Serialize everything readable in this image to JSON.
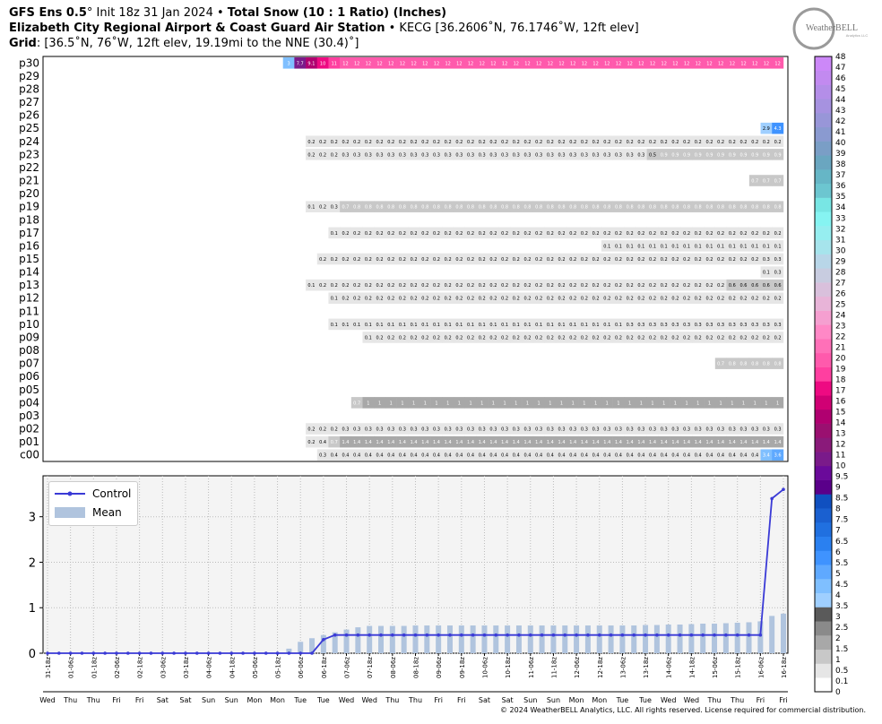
{
  "header": {
    "line1_model": "GFS Ens 0.5",
    "line1_deg": "°",
    "line1_init": " Init 18z 31 Jan 2024 • ",
    "line1_title": "Total Snow (10 : 1 Ratio) (Inches)",
    "line2_place": "Elizabeth City Regional Airport & Coast Guard Air Station",
    "line2_rest": " • KECG [36.2606˚N, 76.1746˚W, 12ft elev]",
    "line3_label": "Grid",
    "line3_rest": ": [36.5˚N, 76˚W, 12ft elev, 19.19mi to the NNE (30.4)˚]"
  },
  "logo": {
    "text": "WeatherBELL",
    "sub": "Analytics LLC"
  },
  "copyright": "© 2024 WeatherBELL Analytics, LLC. All rights reserved. License required for commercial distribution.",
  "colors": {
    "control_line": "#3a3ad6",
    "mean_bar": "#b0c4de",
    "chart_bg": "#f4f4f4"
  },
  "legend": {
    "control": "Control",
    "mean": "Mean"
  },
  "chart_data": [
    {
      "type": "heatmap",
      "title": "Total Snow (10 : 1 Ratio) (Inches)",
      "members": [
        "p30",
        "p29",
        "p28",
        "p27",
        "p26",
        "p25",
        "p24",
        "p23",
        "p22",
        "p21",
        "p20",
        "p19",
        "p18",
        "p17",
        "p16",
        "p15",
        "p14",
        "p13",
        "p12",
        "p11",
        "p10",
        "p09",
        "p08",
        "p07",
        "p06",
        "p05",
        "p04",
        "p03",
        "p02",
        "p01",
        "c00"
      ],
      "n_steps": 65,
      "runs": {
        "p30": [
          [
            21,
            [
              3,
              7.7,
              9.1,
              10,
              11
            ]
          ],
          [
            26,
            [
              12,
              12,
              12,
              12,
              12,
              12,
              12,
              12,
              12,
              12,
              12,
              12,
              12,
              12,
              12,
              12,
              12,
              12,
              12,
              12,
              12,
              12,
              12,
              12,
              12,
              12,
              12,
              12,
              12,
              12,
              12,
              12,
              12,
              12,
              12,
              12,
              12,
              12,
              12
            ]
          ]
        ],
        "p25": [
          [
            63,
            [
              2.9,
              4.3
            ]
          ]
        ],
        "p24": [
          [
            23,
            [
              0.2,
              0.2,
              0.2,
              0.2,
              0.2,
              0.2,
              0.2,
              0.2,
              0.2,
              0.2,
              0.2,
              0.2,
              0.2,
              0.2,
              0.2,
              0.2,
              0.2,
              0.2,
              0.2,
              0.2,
              0.2,
              0.2,
              0.2,
              0.2,
              0.2,
              0.2,
              0.2,
              0.2,
              0.2,
              0.2,
              0.2,
              0.2,
              0.2,
              0.2,
              0.2,
              0.2,
              0.2,
              0.2,
              0.2,
              0.2,
              0.2,
              0.2
            ]
          ]
        ],
        "p23": [
          [
            23,
            [
              0.2,
              0.2,
              0.2,
              0.3,
              0.3,
              0.3,
              0.3,
              0.3,
              0.3,
              0.3,
              0.3,
              0.3,
              0.3,
              0.3,
              0.3,
              0.3,
              0.3,
              0.3,
              0.3,
              0.3,
              0.3,
              0.3,
              0.3,
              0.3,
              0.3,
              0.3,
              0.3,
              0.3,
              0.3,
              0.3,
              0.5,
              0.9,
              0.9,
              0.9,
              0.9,
              0.9,
              0.9,
              0.9,
              0.9,
              0.9,
              0.9,
              0.9
            ]
          ]
        ],
        "p21": [
          [
            62,
            [
              0.7,
              0.7,
              0.7
            ]
          ]
        ],
        "p19": [
          [
            23,
            [
              0.1,
              0.2,
              0.3,
              0.7,
              0.8,
              0.8,
              0.8,
              0.8,
              0.8,
              0.8,
              0.8,
              0.8,
              0.8,
              0.8,
              0.8,
              0.8,
              0.8,
              0.8,
              0.8,
              0.8,
              0.8,
              0.8,
              0.8,
              0.8,
              0.8,
              0.8,
              0.8,
              0.8,
              0.8,
              0.8,
              0.8,
              0.8,
              0.8,
              0.8,
              0.8,
              0.8,
              0.8,
              0.8,
              0.8,
              0.8,
              0.8,
              0.8
            ]
          ]
        ],
        "p17": [
          [
            25,
            [
              0.1,
              0.2,
              0.2,
              0.2,
              0.2,
              0.2,
              0.2,
              0.2,
              0.2,
              0.2,
              0.2,
              0.2,
              0.2,
              0.2,
              0.2,
              0.2,
              0.2,
              0.2,
              0.2,
              0.2,
              0.2,
              0.2,
              0.2,
              0.2,
              0.2,
              0.2,
              0.2,
              0.2,
              0.2,
              0.2,
              0.2,
              0.2,
              0.2,
              0.2,
              0.2,
              0.2,
              0.2,
              0.2,
              0.2,
              0.2
            ]
          ]
        ],
        "p16": [
          [
            49,
            [
              0.1,
              0.1,
              0.1,
              0.1,
              0.1,
              0.1,
              0.1,
              0.1,
              0.1,
              0.1,
              0.1,
              0.1,
              0.1,
              0.1,
              0.1,
              0.1
            ]
          ]
        ],
        "p15": [
          [
            24,
            [
              0.2,
              0.2,
              0.2,
              0.2,
              0.2,
              0.2,
              0.2,
              0.2,
              0.2,
              0.2,
              0.2,
              0.2,
              0.2,
              0.2,
              0.2,
              0.2,
              0.2,
              0.2,
              0.2,
              0.2,
              0.2,
              0.2,
              0.2,
              0.2,
              0.2,
              0.2,
              0.2,
              0.2,
              0.2,
              0.2,
              0.2,
              0.2,
              0.2,
              0.2,
              0.2,
              0.2,
              0.2,
              0.2,
              0.2,
              0.3,
              0.3
            ]
          ]
        ],
        "p14": [
          [
            63,
            [
              0.1,
              0.3
            ]
          ]
        ],
        "p13": [
          [
            23,
            [
              0.1,
              0.2,
              0.2,
              0.2,
              0.2,
              0.2,
              0.2,
              0.2,
              0.2,
              0.2,
              0.2,
              0.2,
              0.2,
              0.2,
              0.2,
              0.2,
              0.2,
              0.2,
              0.2,
              0.2,
              0.2,
              0.2,
              0.2,
              0.2,
              0.2,
              0.2,
              0.2,
              0.2,
              0.2,
              0.2,
              0.2,
              0.2,
              0.2,
              0.2,
              0.2,
              0.2,
              0.2,
              0.6,
              0.6,
              0.6,
              0.6,
              0.6
            ]
          ]
        ],
        "p12": [
          [
            25,
            [
              0.1,
              0.2,
              0.2,
              0.2,
              0.2,
              0.2,
              0.2,
              0.2,
              0.2,
              0.2,
              0.2,
              0.2,
              0.2,
              0.2,
              0.2,
              0.2,
              0.2,
              0.2,
              0.2,
              0.2,
              0.2,
              0.2,
              0.2,
              0.2,
              0.2,
              0.2,
              0.2,
              0.2,
              0.2,
              0.2,
              0.2,
              0.2,
              0.2,
              0.2,
              0.2,
              0.2,
              0.2,
              0.2,
              0.2,
              0.2
            ]
          ]
        ],
        "p10": [
          [
            25,
            [
              0.1,
              0.1,
              0.1,
              0.1,
              0.1,
              0.1,
              0.1,
              0.1,
              0.1,
              0.1,
              0.1,
              0.1,
              0.1,
              0.1,
              0.1,
              0.1,
              0.1,
              0.1,
              0.1,
              0.1,
              0.1,
              0.1,
              0.1,
              0.1,
              0.1,
              0.1,
              0.3,
              0.3,
              0.3,
              0.3,
              0.3,
              0.3,
              0.3,
              0.3,
              0.3,
              0.3,
              0.3,
              0.3,
              0.3,
              0.3
            ]
          ]
        ],
        "p09": [
          [
            28,
            [
              0.1,
              0.2,
              0.2,
              0.2,
              0.2,
              0.2,
              0.2,
              0.2,
              0.2,
              0.2,
              0.2,
              0.2,
              0.2,
              0.2,
              0.2,
              0.2,
              0.2,
              0.2,
              0.2,
              0.2,
              0.2,
              0.2,
              0.2,
              0.2,
              0.2,
              0.2,
              0.2,
              0.2,
              0.2,
              0.2,
              0.2,
              0.2,
              0.2,
              0.2,
              0.2,
              0.2,
              0.2
            ]
          ]
        ],
        "p07": [
          [
            59,
            [
              0.7,
              0.8,
              0.8,
              0.8,
              0.8,
              0.8
            ]
          ]
        ],
        "p04": [
          [
            27,
            [
              0.7,
              1,
              1,
              1,
              1,
              1,
              1,
              1,
              1,
              1,
              1,
              1,
              1,
              1,
              1,
              1,
              1,
              1,
              1,
              1,
              1,
              1,
              1,
              1,
              1,
              1,
              1,
              1,
              1,
              1,
              1,
              1,
              1,
              1,
              1,
              1,
              1,
              1
            ]
          ]
        ],
        "p02": [
          [
            23,
            [
              0.2,
              0.2,
              0.2,
              0.3,
              0.3,
              0.3,
              0.3,
              0.3,
              0.3,
              0.3,
              0.3,
              0.3,
              0.3,
              0.3,
              0.3,
              0.3,
              0.3,
              0.3,
              0.3,
              0.3,
              0.3,
              0.3,
              0.3,
              0.3,
              0.3,
              0.3,
              0.3,
              0.3,
              0.3,
              0.3,
              0.3,
              0.3,
              0.3,
              0.3,
              0.3,
              0.3,
              0.3,
              0.3,
              0.3,
              0.3,
              0.3,
              0.3
            ]
          ]
        ],
        "p01": [
          [
            23,
            [
              0.2,
              0.4,
              0.7,
              1.4,
              1.4,
              1.4,
              1.4,
              1.4,
              1.4,
              1.4,
              1.4,
              1.4,
              1.4,
              1.4,
              1.4,
              1.4,
              1.4,
              1.4,
              1.4,
              1.4,
              1.4,
              1.4,
              1.4,
              1.4,
              1.4,
              1.4,
              1.4,
              1.4,
              1.4,
              1.4,
              1.4,
              1.4,
              1.4,
              1.4,
              1.4,
              1.4,
              1.4,
              1.4,
              1.4,
              1.4,
              1.4,
              1.4
            ]
          ]
        ],
        "c00": [
          [
            24,
            [
              0.3,
              0.4,
              0.4,
              0.4,
              0.4,
              0.4,
              0.4,
              0.4,
              0.4,
              0.4,
              0.4,
              0.4,
              0.4,
              0.4,
              0.4,
              0.4,
              0.4,
              0.4,
              0.4,
              0.4,
              0.4,
              0.4,
              0.4,
              0.4,
              0.4,
              0.4,
              0.4,
              0.4,
              0.4,
              0.4,
              0.4,
              0.4,
              0.4,
              0.4,
              0.4,
              0.4,
              0.4,
              0.4,
              0.4,
              3.4,
              3.6
            ]
          ]
        ]
      }
    },
    {
      "type": "line",
      "ylim": [
        0,
        3.9
      ],
      "yticks": [
        0,
        1,
        2,
        3
      ],
      "x_labels": [
        "31-18z",
        "01-06z",
        "01-18z",
        "02-06z",
        "02-18z",
        "03-06z",
        "03-18z",
        "04-06z",
        "04-18z",
        "05-06z",
        "05-18z",
        "06-06z",
        "06-18z",
        "07-06z",
        "07-18z",
        "08-06z",
        "08-18z",
        "09-06z",
        "09-18z",
        "10-06z",
        "10-18z",
        "11-06z",
        "11-18z",
        "12-06z",
        "12-18z",
        "13-06z",
        "13-18z",
        "14-06z",
        "14-18z",
        "15-06z",
        "15-18z",
        "16-06z",
        "16-18z"
      ],
      "day_labels": [
        "Wed",
        "Thu",
        "Thu",
        "Fri",
        "Fri",
        "Sat",
        "Sat",
        "Sun",
        "Sun",
        "Mon",
        "Mon",
        "Tue",
        "Tue",
        "Wed",
        "Wed",
        "Thu",
        "Thu",
        "Fri",
        "Fri",
        "Sat",
        "Sat",
        "Sun",
        "Sun",
        "Mon",
        "Mon",
        "Tue",
        "Tue",
        "Wed",
        "Wed",
        "Thu",
        "Thu",
        "Fri",
        "Fri"
      ],
      "series": [
        {
          "name": "Control",
          "values": [
            0,
            0,
            0,
            0,
            0,
            0,
            0,
            0,
            0,
            0,
            0,
            0,
            0,
            0,
            0,
            0,
            0,
            0,
            0,
            0,
            0,
            0,
            0,
            0,
            0.3,
            0.4,
            0.4,
            0.4,
            0.4,
            0.4,
            0.4,
            0.4,
            0.4,
            0.4,
            0.4,
            0.4,
            0.4,
            0.4,
            0.4,
            0.4,
            0.4,
            0.4,
            0.4,
            0.4,
            0.4,
            0.4,
            0.4,
            0.4,
            0.4,
            0.4,
            0.4,
            0.4,
            0.4,
            0.4,
            0.4,
            0.4,
            0.4,
            0.4,
            0.4,
            0.4,
            0.4,
            0.4,
            0.4,
            3.4,
            3.6
          ]
        },
        {
          "name": "Mean",
          "values": [
            0,
            0,
            0,
            0,
            0,
            0,
            0,
            0,
            0,
            0,
            0,
            0,
            0,
            0,
            0,
            0,
            0,
            0,
            0,
            0,
            0,
            0.1,
            0.25,
            0.33,
            0.4,
            0.46,
            0.52,
            0.57,
            0.6,
            0.6,
            0.6,
            0.6,
            0.61,
            0.61,
            0.61,
            0.61,
            0.61,
            0.61,
            0.61,
            0.61,
            0.61,
            0.61,
            0.61,
            0.61,
            0.61,
            0.61,
            0.61,
            0.61,
            0.61,
            0.61,
            0.61,
            0.61,
            0.62,
            0.62,
            0.63,
            0.63,
            0.64,
            0.65,
            0.65,
            0.66,
            0.67,
            0.68,
            0.7,
            0.82,
            0.87
          ]
        }
      ]
    }
  ],
  "colorbar": {
    "labels": [
      "0",
      "0.1",
      "0.5",
      "1",
      "1.5",
      "2",
      "2.5",
      "3",
      "3.5",
      "4",
      "4.5",
      "5",
      "5.5",
      "6",
      "6.5",
      "7",
      "7.5",
      "8",
      "8.5",
      "9",
      "9.5",
      "10",
      "11",
      "12",
      "13",
      "14",
      "15",
      "16",
      "17",
      "18",
      "19",
      "20",
      "21",
      "22",
      "23",
      "24",
      "25",
      "26",
      "27",
      "28",
      "29",
      "30",
      "31",
      "32",
      "33",
      "34",
      "35",
      "36",
      "37",
      "38",
      "39",
      "40",
      "41",
      "42",
      "43",
      "44",
      "45",
      "46",
      "47",
      "48"
    ],
    "colors": [
      "#ffffff",
      "#e6e6e6",
      "#c8c8c8",
      "#a8a8a8",
      "#8a8a8a",
      "#5a5a5a",
      "#9fcfff",
      "#7fbfff",
      "#5fa9ff",
      "#3f93ff",
      "#2a80f0",
      "#2070e0",
      "#1a60d0",
      "#1050c0",
      "#5a008a",
      "#6a0a9a",
      "#7a1a8a",
      "#8a1a7a",
      "#9a1070",
      "#b00070",
      "#d00074",
      "#ee0a82",
      "#ff3fa0",
      "#ff5aac",
      "#ff70b8",
      "#ff88c6",
      "#f59fd0",
      "#e8b4d8",
      "#d9c0dc",
      "#c8cce0",
      "#b8d6e8",
      "#a6e4ec",
      "#96eef0",
      "#86f4f2",
      "#78e6e4",
      "#6cc6d0",
      "#66b6c6",
      "#6aa6c0",
      "#7a9ec6",
      "#8a9ad0",
      "#9896d8",
      "#a692e0",
      "#b48ee8",
      "#c28af0",
      "#cc88f8"
    ]
  }
}
